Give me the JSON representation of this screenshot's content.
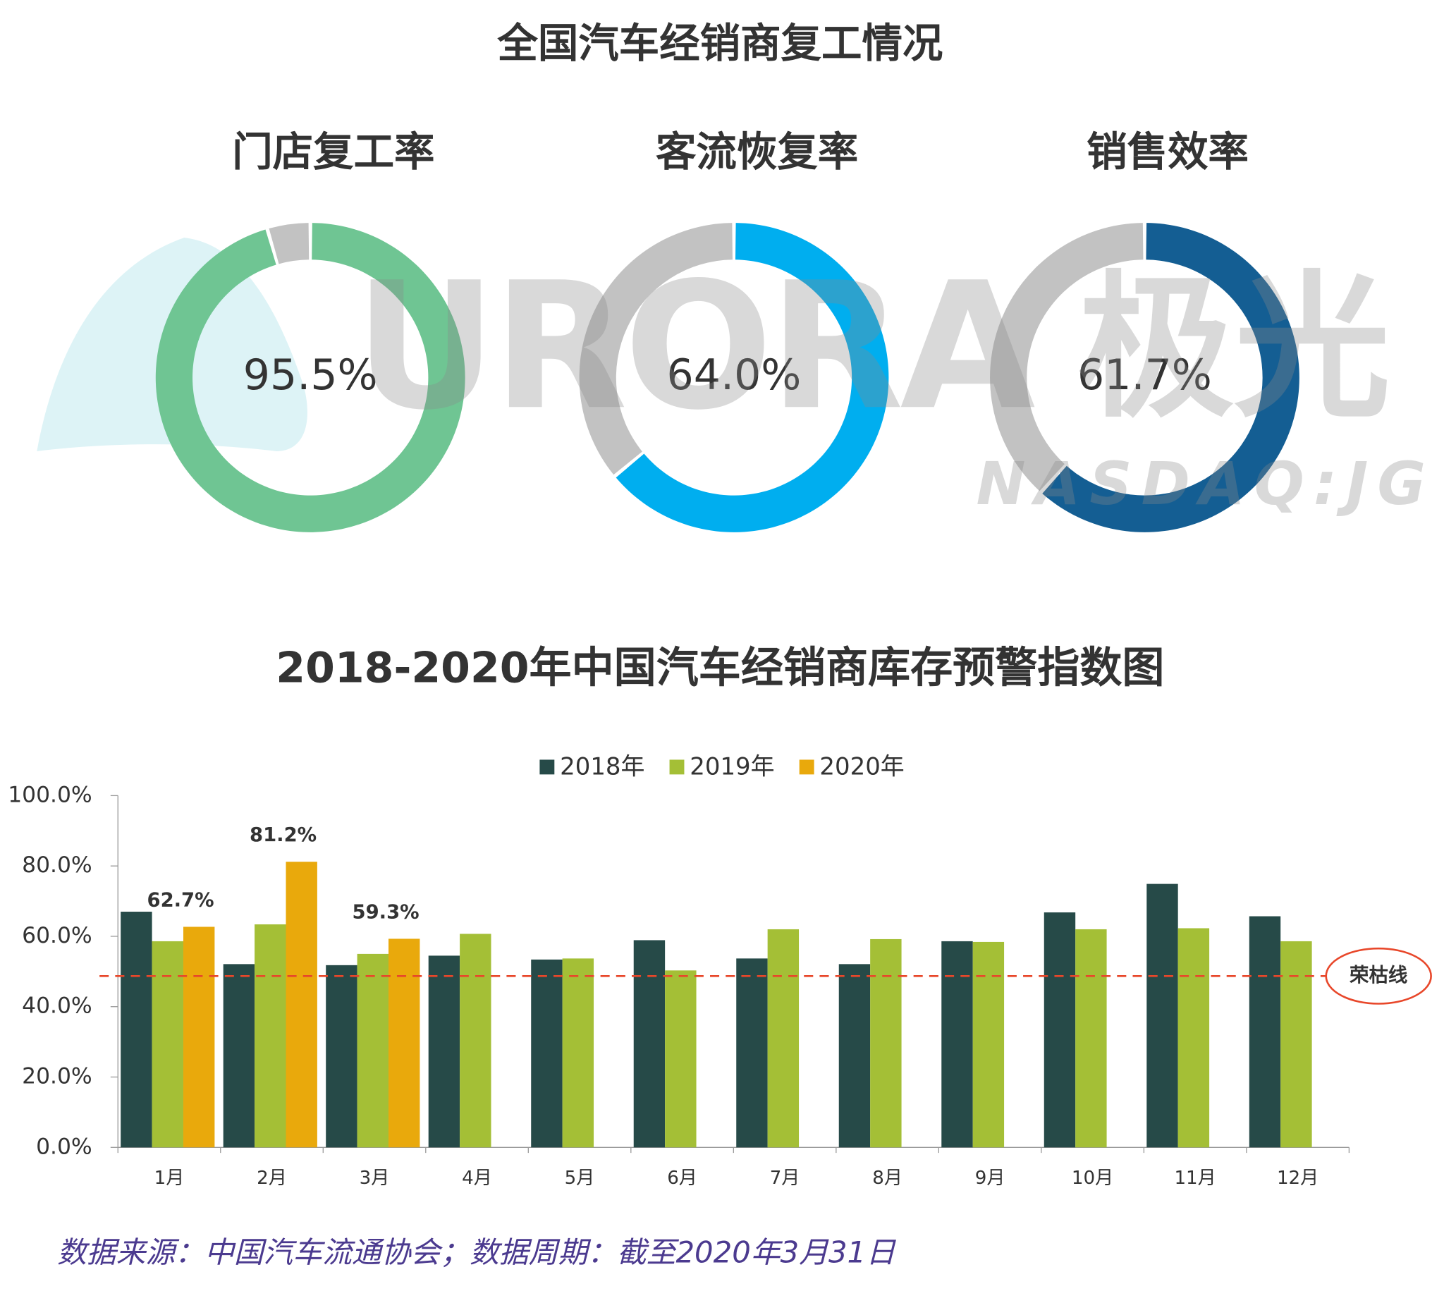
{
  "title": "全国汽车经销商复工情况",
  "watermark": {
    "text": "URORA",
    "text_cn": "极光",
    "subtext": "NASDAQ:JG"
  },
  "chart_data": [
    {
      "type": "donut",
      "title": "门店复工率",
      "value": 95.5,
      "value_label": "95.5%",
      "color": "#6fc593",
      "track_color": "#c2c2c2"
    },
    {
      "type": "donut",
      "title": "客流恢复率",
      "value": 64.0,
      "value_label": "64.0%",
      "color": "#00aeef",
      "track_color": "#c2c2c2"
    },
    {
      "type": "donut",
      "title": "销售效率",
      "value": 61.7,
      "value_label": "61.7%",
      "color": "#145e93",
      "track_color": "#c2c2c2"
    },
    {
      "type": "bar",
      "title": "2018-2020年中国汽车经销商库存预警指数图",
      "categories": [
        "1月",
        "2月",
        "3月",
        "4月",
        "5月",
        "6月",
        "7月",
        "8月",
        "9月",
        "10月",
        "11月",
        "12月"
      ],
      "series": [
        {
          "name": "2018年",
          "color": "#264a48",
          "values": [
            67.0,
            52.1,
            51.8,
            54.5,
            53.4,
            58.9,
            53.7,
            52.1,
            58.6,
            66.8,
            74.9,
            65.7
          ]
        },
        {
          "name": "2019年",
          "color": "#a4bf36",
          "values": [
            58.6,
            63.4,
            55.0,
            60.7,
            53.7,
            50.3,
            62.0,
            59.2,
            58.4,
            62.0,
            62.3,
            58.6
          ]
        },
        {
          "name": "2020年",
          "color": "#e9a90c",
          "values": [
            62.7,
            81.2,
            59.3,
            null,
            null,
            null,
            null,
            null,
            null,
            null,
            null,
            null
          ],
          "value_labels": [
            "62.7%",
            "81.2%",
            "59.3%",
            null,
            null,
            null,
            null,
            null,
            null,
            null,
            null,
            null
          ]
        }
      ],
      "ylim": [
        0,
        100
      ],
      "yticks": [
        {
          "value": 0,
          "label": "0.0%"
        },
        {
          "value": 20,
          "label": "20.0%"
        },
        {
          "value": 40,
          "label": "40.0%"
        },
        {
          "value": 60,
          "label": "60.0%"
        },
        {
          "value": 80,
          "label": "80.0%"
        },
        {
          "value": 100,
          "label": "100.0%"
        }
      ],
      "reference_line": {
        "value": 48.7,
        "label": "荣枯线",
        "color": "#e8472a"
      },
      "legend": "top"
    }
  ],
  "source": "数据来源：中国汽车流通协会；数据周期：截至2020年3月31日"
}
